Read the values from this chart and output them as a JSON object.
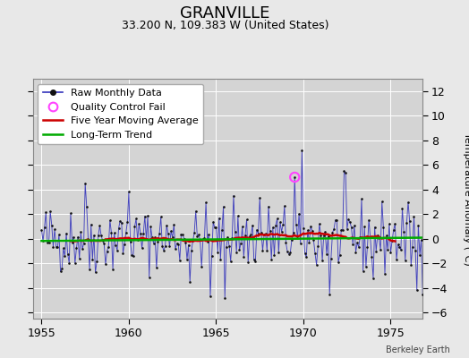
{
  "title": "GRANVILLE",
  "subtitle": "33.200 N, 109.383 W (United States)",
  "credit": "Berkeley Earth",
  "ylabel": "Temperature Anomaly (°C)",
  "xlim": [
    1954.5,
    1976.8
  ],
  "ylim": [
    -6.5,
    13.0
  ],
  "yticks": [
    -6,
    -4,
    -2,
    0,
    2,
    4,
    6,
    8,
    10,
    12
  ],
  "xticks": [
    1955,
    1960,
    1965,
    1970,
    1975
  ],
  "bg_color": "#e8e8e8",
  "plot_bg_color": "#d4d4d4",
  "grid_color": "#ffffff",
  "line_color": "#3333bb",
  "raw_dot_color": "#111111",
  "ma_color": "#cc0000",
  "trend_color": "#00aa00",
  "qc_color": "#ff44ff",
  "title_fontsize": 13,
  "subtitle_fontsize": 9,
  "tick_fontsize": 9,
  "ylabel_fontsize": 8,
  "credit_fontsize": 7,
  "legend_fontsize": 8,
  "seed": 42,
  "n_months": 264,
  "start_year": 1955,
  "qc_fail_x": 1969.5,
  "qc_fail_y": 5.0,
  "trend_slope": 0.012,
  "trend_intercept": -0.18,
  "ma_window": 60
}
